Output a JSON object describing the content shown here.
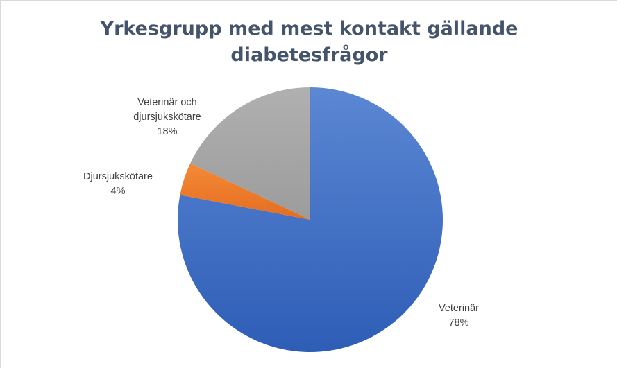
{
  "chart_data": {
    "type": "pie",
    "title_lines": [
      "Yrkesgrupp med mest kontakt gällande",
      "diabetesfrågor"
    ],
    "slices": [
      {
        "name": "Veterinär",
        "value": 78,
        "value_label": "78%",
        "color": "#4472c4"
      },
      {
        "name": "Djursjukskötare",
        "value": 4,
        "value_label": "4%",
        "color": "#ed7d31"
      },
      {
        "name_lines": [
          "Veterinär och",
          "djursjukskötare"
        ],
        "value": 18,
        "value_label": "18%",
        "color": "#a5a5a5"
      }
    ],
    "start_angle": "12 o'clock",
    "direction": "clockwise",
    "legend": "none"
  }
}
